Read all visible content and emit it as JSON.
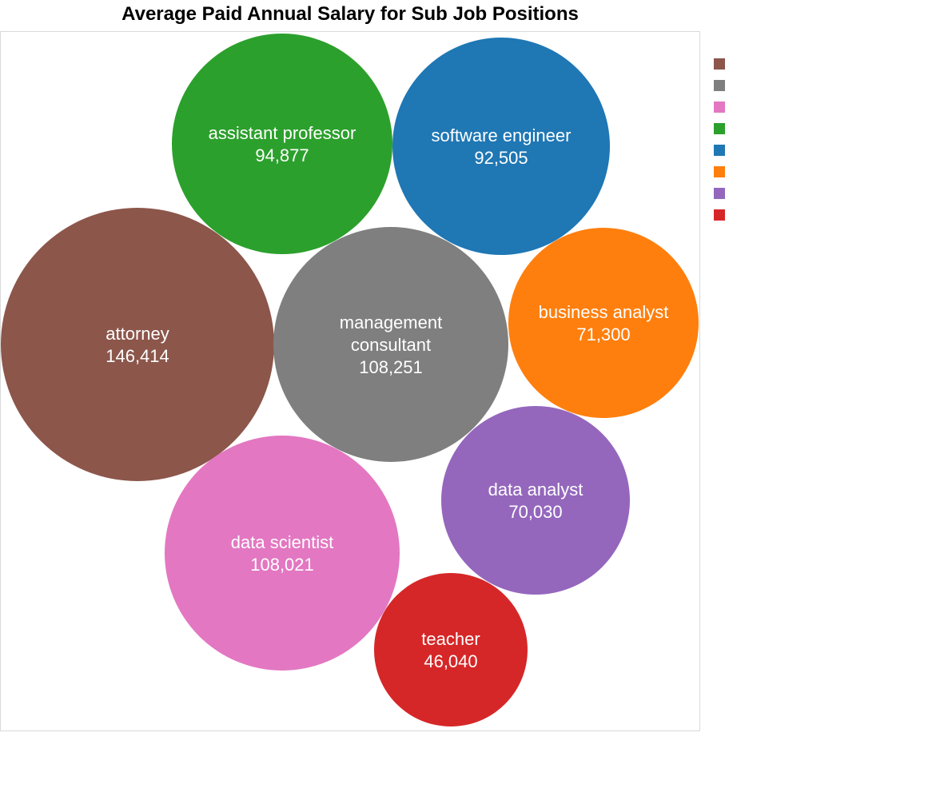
{
  "chart_data": {
    "type": "bubble",
    "title": "Average Paid Annual Salary for Sub Job Positions",
    "legend": {
      "placement": "top-right",
      "label_text": "none"
    },
    "series": [
      {
        "label": "attorney",
        "value": 146414,
        "display_value": "146,414",
        "color": "#8c564b"
      },
      {
        "label": "management consultant",
        "lines": [
          "management",
          "consultant"
        ],
        "value": 108251,
        "display_value": "108,251",
        "color": "#7f7f7f"
      },
      {
        "label": "data scientist",
        "value": 108021,
        "display_value": "108,021",
        "color": "#e377c2"
      },
      {
        "label": "assistant professor",
        "value": 94877,
        "display_value": "94,877",
        "color": "#2ca02c"
      },
      {
        "label": "software engineer",
        "value": 92505,
        "display_value": "92,505",
        "color": "#1f77b4"
      },
      {
        "label": "business analyst",
        "value": 71300,
        "display_value": "71,300",
        "color": "#ff7f0e"
      },
      {
        "label": "data analyst",
        "value": 70030,
        "display_value": "70,030",
        "color": "#9467bd"
      },
      {
        "label": "teacher",
        "value": 46040,
        "display_value": "46,040",
        "color": "#d62728"
      }
    ]
  }
}
